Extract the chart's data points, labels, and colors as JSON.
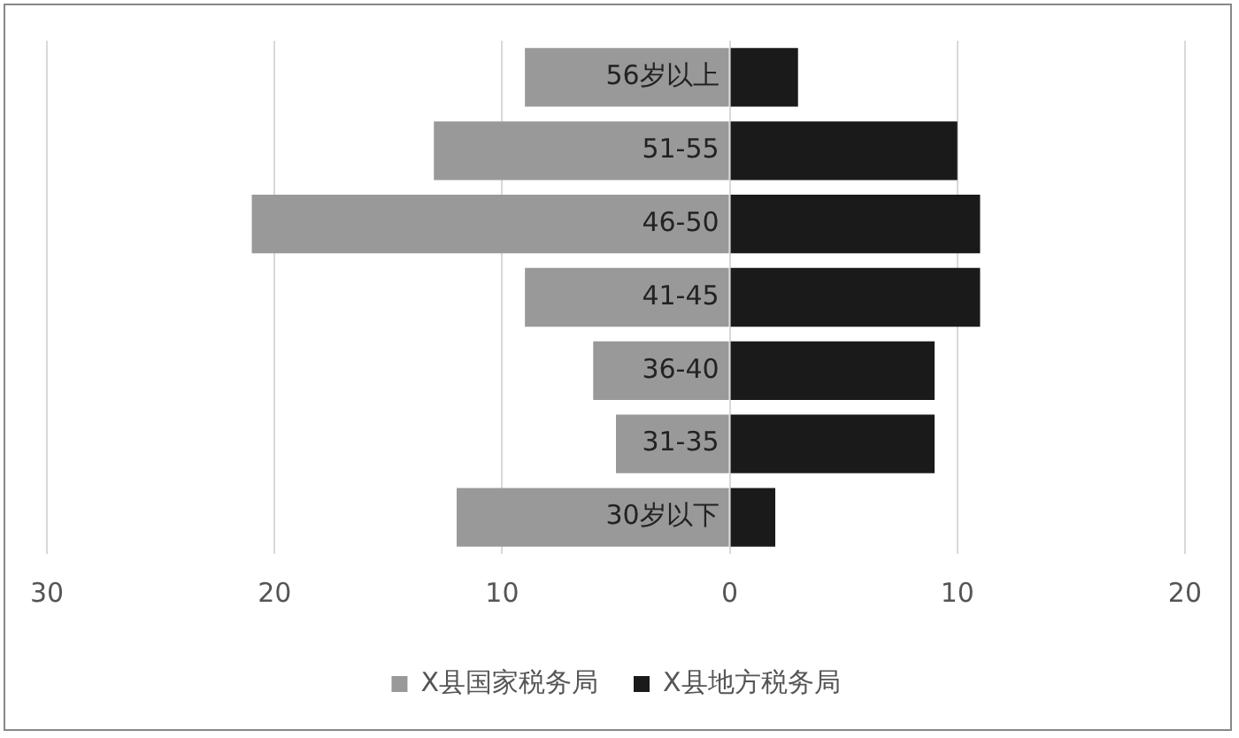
{
  "chart_data": {
    "type": "bar",
    "orientation": "horizontal",
    "stacked": true,
    "categories": [
      "56岁以上",
      "51-55",
      "46-50",
      "41-45",
      "36-40",
      "31-35",
      "30岁以下"
    ],
    "series": [
      {
        "name": "X县国家税务局",
        "color": "#999999",
        "values": [
          -9,
          -13,
          -21,
          -9,
          -6,
          -5,
          -12
        ]
      },
      {
        "name": "X县地方税务局",
        "color": "#1a1a1a",
        "values": [
          3,
          10,
          11,
          11,
          9,
          9,
          2
        ]
      }
    ],
    "xlim": [
      -30,
      20
    ],
    "xticks": [
      {
        "value": -30,
        "label": "30"
      },
      {
        "value": -20,
        "label": "20"
      },
      {
        "value": -10,
        "label": "10"
      },
      0,
      10,
      20
    ],
    "grid": "x",
    "legend": "bottom"
  }
}
